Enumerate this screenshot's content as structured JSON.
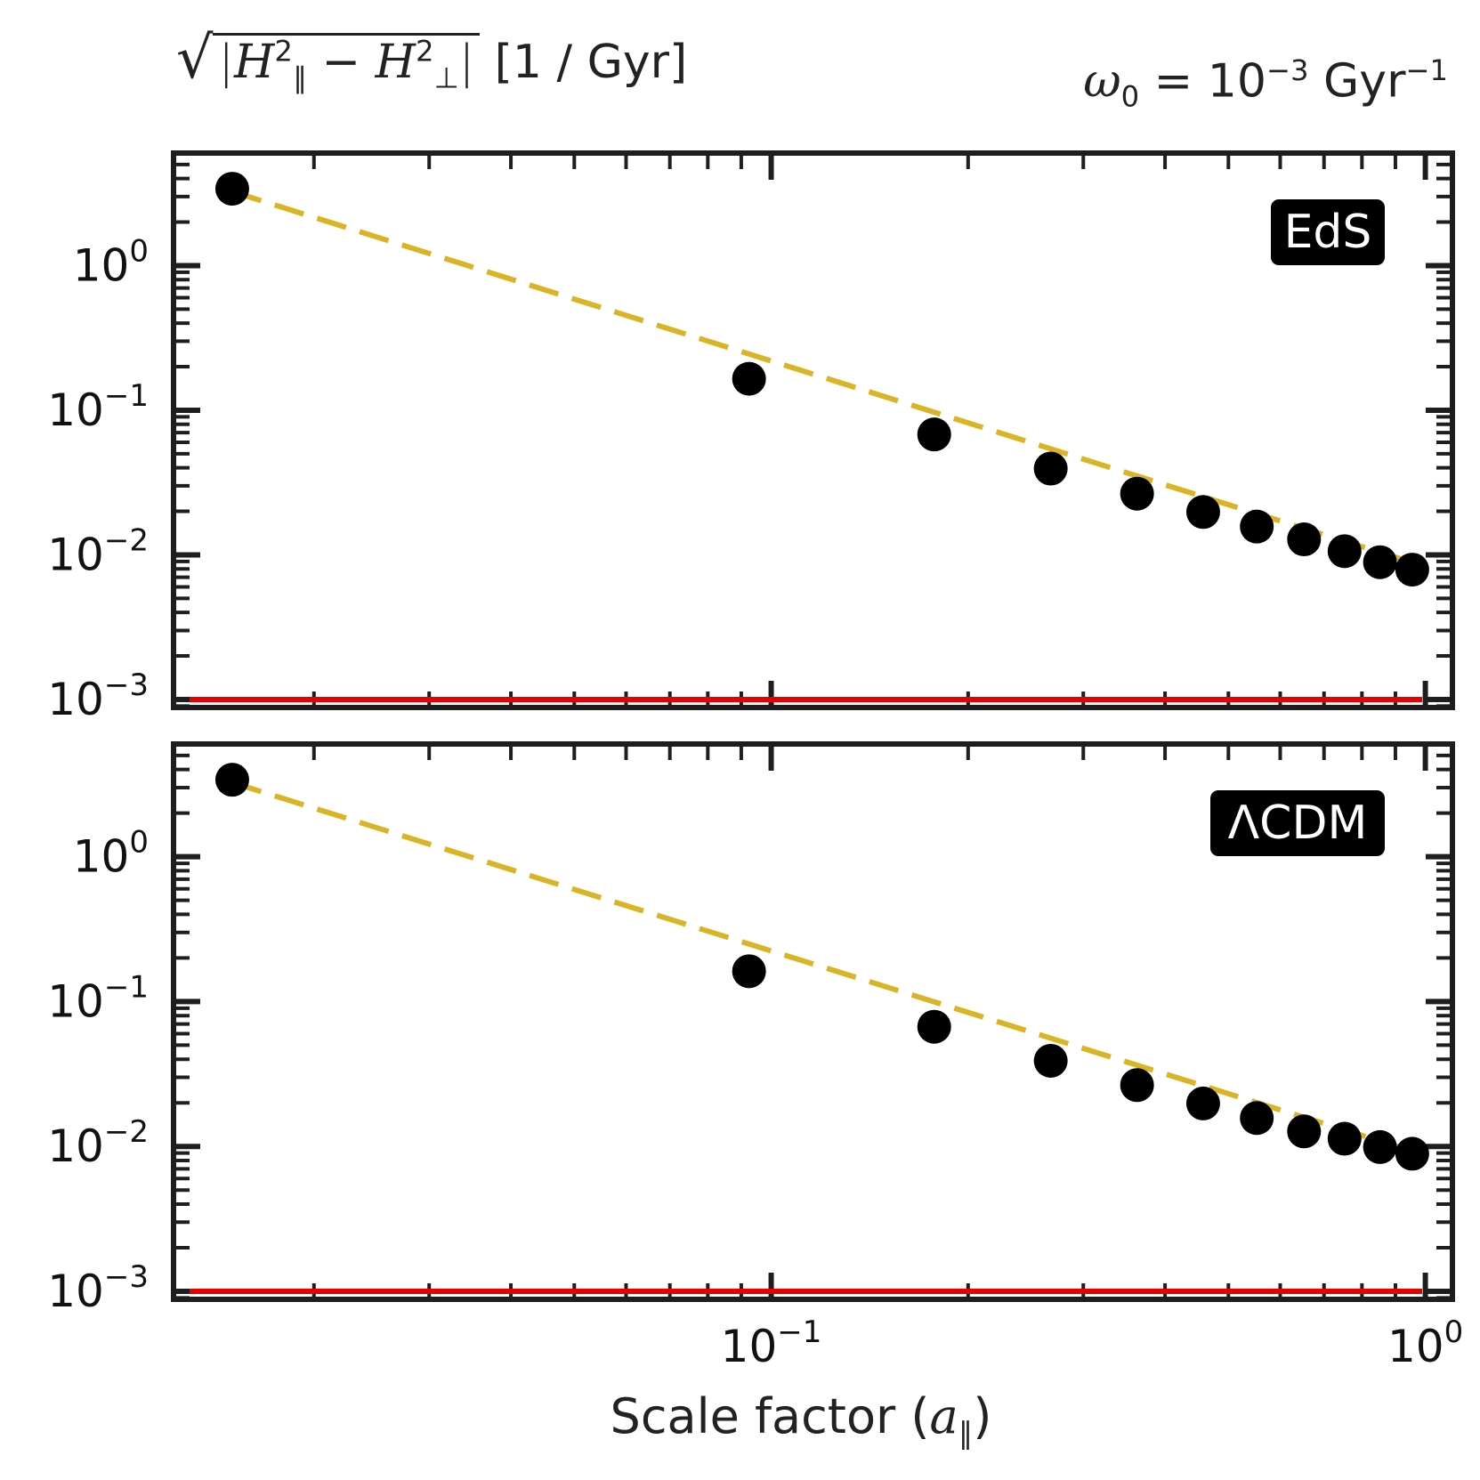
{
  "header": {
    "ylabel_H": "H",
    "ylabel_par": "∥",
    "ylabel_perp": "⊥",
    "ylabel_sq": "2",
    "ylabel_unit": "[1 / Gyr]",
    "omega_symbol": "ω",
    "omega_sub": "0",
    "omega_eq": "= 10",
    "omega_exp": "−3",
    "omega_unit": "Gyr",
    "omega_unit_exp": "−1"
  },
  "xaxis_label": "Scale factor (a∥)",
  "xaxis_label_main": "Scale factor (",
  "xaxis_label_a": "a",
  "xaxis_label_sub": "∥",
  "xaxis_label_close": ")",
  "colors": {
    "points": "#000000",
    "fit": "#d9b526",
    "threshold": "#e60000",
    "frame": "#1e1e1e",
    "badge_bg": "#000000",
    "badge_text": "#ffffff"
  },
  "chart_data": [
    {
      "type": "scatter",
      "panel": "top",
      "badge": "EdS",
      "xscale": "log",
      "yscale": "log",
      "xlim": [
        0.0122,
        1.1
      ],
      "ylim": [
        0.00088,
        6.0
      ],
      "x_tick_labels": [],
      "y_ticks": [
        1,
        0.1,
        0.01,
        0.001
      ],
      "y_tick_labels": [
        {
          "base": "10",
          "exp": "0"
        },
        {
          "base": "10",
          "exp": "−1"
        },
        {
          "base": "10",
          "exp": "−2"
        },
        {
          "base": "10",
          "exp": "−3"
        }
      ],
      "series": [
        {
          "name": "simulation",
          "style": "markers",
          "x": [
            0.015,
            0.0925,
            0.1775,
            0.2675,
            0.3625,
            0.4575,
            0.5525,
            0.6525,
            0.7525,
            0.8525,
            0.955
          ],
          "y": [
            3.4,
            0.165,
            0.068,
            0.0395,
            0.0265,
            0.0198,
            0.0157,
            0.0128,
            0.0106,
            0.0089,
            0.0079
          ]
        },
        {
          "name": "fit",
          "style": "dashed",
          "x": [
            0.015,
            1.0
          ],
          "y": [
            3.25,
            0.0083
          ]
        },
        {
          "name": "threshold",
          "style": "solid",
          "x": [
            0.0122,
            1.1
          ],
          "y": [
            0.001,
            0.001
          ]
        }
      ]
    },
    {
      "type": "scatter",
      "panel": "bottom",
      "badge": "ΛCDM",
      "xscale": "log",
      "yscale": "log",
      "xlim": [
        0.0122,
        1.1
      ],
      "ylim": [
        0.00088,
        6.0
      ],
      "x_ticks": [
        0.1,
        1.0
      ],
      "x_tick_labels": [
        {
          "base": "10",
          "exp": "−1"
        },
        {
          "base": "10",
          "exp": "0"
        }
      ],
      "y_ticks": [
        1,
        0.1,
        0.01,
        0.001
      ],
      "y_tick_labels": [
        {
          "base": "10",
          "exp": "0"
        },
        {
          "base": "10",
          "exp": "−1"
        },
        {
          "base": "10",
          "exp": "−2"
        },
        {
          "base": "10",
          "exp": "−3"
        }
      ],
      "series": [
        {
          "name": "simulation",
          "style": "markers",
          "x": [
            0.015,
            0.0925,
            0.1775,
            0.2675,
            0.3625,
            0.4575,
            0.5525,
            0.6525,
            0.7525,
            0.8525,
            0.955
          ],
          "y": [
            3.4,
            0.162,
            0.067,
            0.039,
            0.0265,
            0.0198,
            0.0157,
            0.0127,
            0.0113,
            0.0099,
            0.0089
          ]
        },
        {
          "name": "fit",
          "style": "dashed",
          "x": [
            0.015,
            1.0
          ],
          "y": [
            3.25,
            0.0087
          ]
        },
        {
          "name": "threshold",
          "style": "solid",
          "x": [
            0.0122,
            1.1
          ],
          "y": [
            0.001,
            0.001
          ]
        }
      ]
    }
  ]
}
